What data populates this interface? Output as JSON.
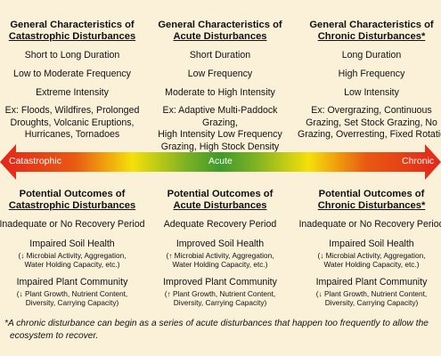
{
  "colors": {
    "background": "#fbf1d9",
    "catastrophic_red": "#e3261b",
    "yellow": "#f5e00a",
    "acute_green": "#3f9a2c",
    "chronic_red": "#e3261b"
  },
  "characteristics": [
    {
      "head_line1": "General Characteristics of",
      "head_line2": "Catastrophic Disturbances",
      "duration": "Short to Long Duration",
      "frequency": "Low to Moderate Frequency",
      "intensity": "Extreme Intensity",
      "ex_lines": [
        "Ex: Floods, Wildfires, Prolonged",
        "Droughts, Volcanic Eruptions,",
        "Hurricanes, Tornadoes"
      ]
    },
    {
      "head_line1": "General Characteristics of",
      "head_line2": "Acute Disturbances",
      "duration": "Short Duration",
      "frequency": "Low Frequency",
      "intensity": "Moderate to High Intensity",
      "ex_lines": [
        "Ex: Adaptive Multi-Paddock Grazing,",
        "High Intensity Low Frequency",
        "Grazing, High Stock Density Grazing"
      ]
    },
    {
      "head_line1": "General Characteristics of",
      "head_line2": "Chronic Disturbances*",
      "duration": "Long Duration",
      "frequency": "High Frequency",
      "intensity": "Low Intensity",
      "ex_lines": [
        "Ex: Overgrazing, Continuous",
        "Grazing, Set Stock Grazing, No",
        "Grazing, Overresting, Fixed Rotatio"
      ]
    }
  ],
  "band": {
    "left_label": "Catastrophic",
    "middle_label": "Acute",
    "right_label": "Chronic"
  },
  "outcomes": [
    {
      "head_line1": "Potential Outcomes of",
      "head_line2": "Catastrophic Disturbances",
      "recovery": "Inadequate or No Recovery Period",
      "soil": "Impaired Soil Health",
      "soil_sub": [
        "(↓ Microbial Activity, Aggregation,",
        "Water Holding Capacity, etc.)"
      ],
      "plant": "Impaired Plant Community",
      "plant_sub": [
        "(↓ Plant Growth, Nutrient Content,",
        "Diversity, Carrying Capacity)"
      ]
    },
    {
      "head_line1": "Potential Outcomes of",
      "head_line2": "Acute Disturbances",
      "recovery": "Adequate Recovery Period",
      "soil": "Improved Soil Health",
      "soil_sub": [
        "(↑ Microbial Activity, Aggregation,",
        "Water Holding Capacity, etc.)"
      ],
      "plant": "Improved Plant Community",
      "plant_sub": [
        "(↑ Plant Growth, Nutrient Content,",
        "Diversity, Carrying Capacity)"
      ]
    },
    {
      "head_line1": "Potential Outcomes of",
      "head_line2": "Chronic Disturbances*",
      "recovery": "Inadequate or No Recovery Period",
      "soil": "Impaired Soil Health",
      "soil_sub": [
        "(↓ Microbial Activity, Aggregation,",
        "Water Holding Capacity, etc.)"
      ],
      "plant": "Impaired Plant Community",
      "plant_sub": [
        "(↓ Plant Growth, Nutrient Content,",
        "Diversity, Carrying Capacity)"
      ]
    }
  ],
  "footnote": {
    "line1": "*A chronic disturbance can begin as a series of acute disturbances that happen too frequently to allow the",
    "line2": "ecosystem to recover."
  }
}
